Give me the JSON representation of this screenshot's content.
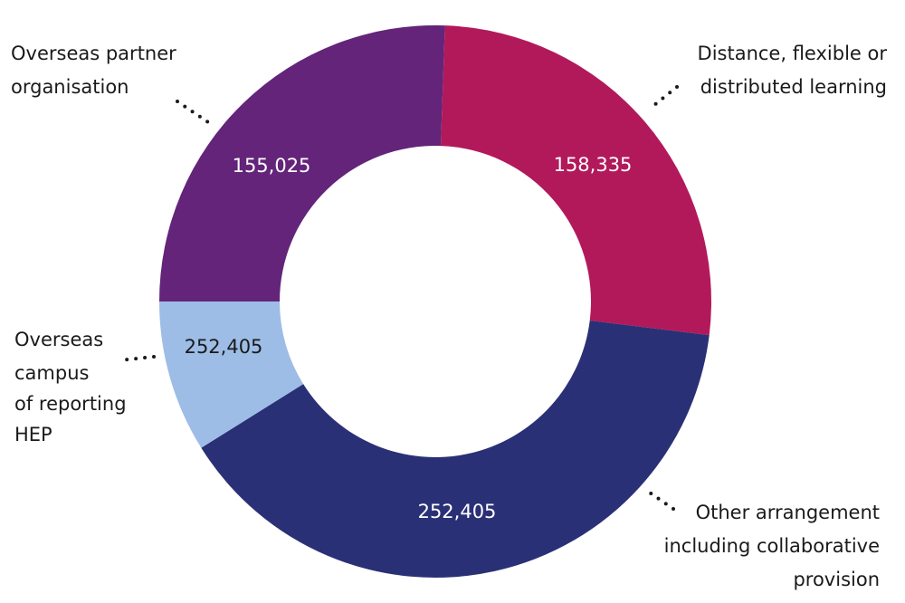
{
  "chart_data": {
    "type": "pie",
    "donut": true,
    "slices": [
      {
        "category": "Distance, flexible or distributed learning",
        "value_label": "158,335",
        "value": 158335,
        "color": "#b2195a",
        "label_color": "#ffffff"
      },
      {
        "category": "Other arrangement including collaborative provision",
        "value_label": "252,405",
        "value": 252405,
        "color": "#2a3076",
        "label_color": "#ffffff"
      },
      {
        "category": "Overseas campus of reporting HEP",
        "value_label": "252,405",
        "value": 252405,
        "color": "#9dbde6",
        "label_color": "#1a1a1a"
      },
      {
        "category": "Overseas partner organisation",
        "value_label": "155,025",
        "value": 155025,
        "color": "#63247a",
        "label_color": "#ffffff"
      }
    ],
    "legend": "labels around the ring with dotted leader lines"
  }
}
